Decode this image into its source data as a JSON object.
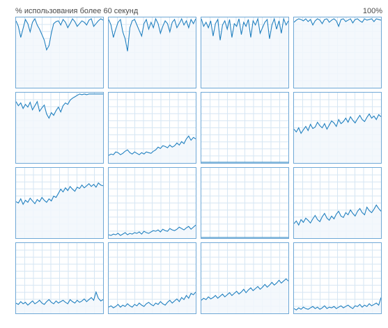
{
  "header": {
    "left_label": "% использования более 60 секунд",
    "right_label": "100%"
  },
  "colors": {
    "border": "#6fa8d6",
    "line": "#1f7fbf",
    "fill": "#f2f7fc",
    "grid": "#d6e6f3"
  },
  "chart_data": {
    "type": "line",
    "ylim": [
      0,
      100
    ],
    "grid": true,
    "series": [
      {
        "values": [
          96,
          88,
          72,
          85,
          98,
          92,
          80,
          94,
          99,
          90,
          84,
          76,
          68,
          54,
          60,
          78,
          92,
          95,
          96,
          90,
          98,
          94,
          86,
          92,
          99,
          95,
          88,
          92,
          96,
          94,
          90,
          97,
          99,
          88,
          92,
          96,
          99,
          97
        ]
      },
      {
        "values": [
          98,
          90,
          72,
          84,
          94,
          98,
          80,
          70,
          52,
          86,
          96,
          98,
          90,
          82,
          74,
          92,
          98,
          84,
          94,
          86,
          99,
          92,
          78,
          88,
          96,
          92,
          80,
          94,
          98,
          86,
          92,
          99,
          90,
          96,
          86,
          98,
          92,
          99
        ]
      },
      {
        "values": [
          99,
          88,
          94,
          86,
          96,
          74,
          92,
          98,
          68,
          90,
          96,
          84,
          98,
          72,
          92,
          88,
          99,
          76,
          94,
          88,
          98,
          72,
          96,
          90,
          99,
          78,
          86,
          94,
          98,
          70,
          90,
          99,
          84,
          96,
          78,
          99,
          90,
          96
        ]
      },
      {
        "values": [
          94,
          97,
          99,
          98,
          96,
          99,
          95,
          98,
          90,
          96,
          99,
          97,
          92,
          98,
          99,
          94,
          97,
          99,
          96,
          88,
          98,
          99,
          95,
          97,
          99,
          93,
          98,
          99,
          96,
          94,
          99,
          97,
          98,
          99,
          95,
          99,
          98,
          97
        ]
      },
      {
        "values": [
          88,
          82,
          86,
          78,
          84,
          80,
          87,
          76,
          82,
          88,
          74,
          79,
          83,
          70,
          64,
          72,
          68,
          75,
          80,
          73,
          82,
          86,
          84,
          90,
          93,
          95,
          97,
          99,
          98,
          99,
          98,
          99,
          99,
          99,
          99,
          99,
          99,
          99
        ]
      },
      {
        "values": [
          10,
          12,
          11,
          15,
          14,
          11,
          13,
          16,
          18,
          14,
          12,
          15,
          13,
          11,
          14,
          12,
          15,
          14,
          13,
          16,
          18,
          22,
          20,
          24,
          23,
          21,
          25,
          22,
          24,
          28,
          25,
          30,
          27,
          34,
          38,
          32,
          36,
          34
        ]
      },
      {
        "values": [
          0,
          0,
          0,
          0,
          0,
          0,
          0,
          0,
          0,
          0,
          0,
          0,
          0,
          0,
          0,
          0,
          0,
          0,
          0,
          0,
          0,
          0,
          0,
          0,
          0,
          0,
          0,
          0,
          0,
          0,
          0,
          0,
          0,
          0,
          0,
          0,
          0,
          0
        ]
      },
      {
        "values": [
          48,
          44,
          50,
          42,
          47,
          52,
          46,
          55,
          49,
          51,
          58,
          53,
          50,
          56,
          48,
          54,
          60,
          57,
          52,
          62,
          56,
          59,
          64,
          58,
          66,
          61,
          57,
          63,
          68,
          62,
          59,
          65,
          70,
          64,
          67,
          62,
          69,
          66
        ]
      },
      {
        "values": [
          52,
          50,
          56,
          48,
          54,
          51,
          57,
          53,
          49,
          55,
          52,
          58,
          54,
          51,
          56,
          53,
          60,
          58,
          64,
          70,
          66,
          72,
          68,
          74,
          70,
          67,
          73,
          71,
          76,
          72,
          75,
          78,
          74,
          77,
          73,
          79,
          76,
          75
        ]
      },
      {
        "values": [
          4,
          3,
          5,
          4,
          6,
          3,
          5,
          7,
          4,
          6,
          5,
          7,
          6,
          8,
          5,
          9,
          7,
          6,
          8,
          10,
          9,
          11,
          8,
          12,
          10,
          9,
          13,
          11,
          10,
          12,
          15,
          13,
          11,
          14,
          16,
          12,
          15,
          18
        ]
      },
      {
        "values": [
          0,
          0,
          0,
          0,
          0,
          0,
          0,
          0,
          0,
          0,
          0,
          0,
          0,
          0,
          0,
          0,
          0,
          0,
          0,
          0,
          0,
          0,
          0,
          0,
          0,
          0,
          0,
          0,
          0,
          0,
          0,
          0,
          0,
          0,
          0,
          0,
          0,
          0
        ]
      },
      {
        "values": [
          20,
          24,
          18,
          26,
          22,
          28,
          25,
          21,
          27,
          32,
          26,
          23,
          30,
          35,
          28,
          25,
          31,
          27,
          34,
          38,
          31,
          29,
          36,
          33,
          40,
          35,
          31,
          38,
          42,
          36,
          33,
          44,
          39,
          36,
          41,
          47,
          42,
          38
        ]
      },
      {
        "values": [
          14,
          12,
          16,
          13,
          15,
          11,
          14,
          17,
          13,
          15,
          18,
          14,
          12,
          16,
          19,
          15,
          13,
          17,
          14,
          16,
          18,
          15,
          13,
          19,
          16,
          14,
          18,
          15,
          17,
          20,
          16,
          19,
          22,
          18,
          30,
          21,
          17,
          19
        ]
      },
      {
        "values": [
          8,
          10,
          7,
          9,
          12,
          8,
          11,
          9,
          13,
          10,
          8,
          12,
          10,
          14,
          11,
          9,
          13,
          15,
          12,
          10,
          14,
          12,
          16,
          13,
          11,
          15,
          18,
          14,
          17,
          20,
          16,
          22,
          19,
          25,
          21,
          28,
          26,
          30
        ]
      },
      {
        "values": [
          18,
          21,
          19,
          23,
          20,
          22,
          25,
          21,
          24,
          27,
          23,
          26,
          29,
          25,
          28,
          31,
          27,
          30,
          34,
          29,
          33,
          36,
          32,
          35,
          38,
          34,
          37,
          41,
          37,
          40,
          44,
          40,
          43,
          47,
          43,
          46,
          49,
          46
        ]
      },
      {
        "values": [
          6,
          4,
          7,
          5,
          8,
          6,
          5,
          7,
          9,
          6,
          8,
          5,
          7,
          10,
          6,
          8,
          7,
          9,
          6,
          8,
          10,
          7,
          9,
          11,
          8,
          6,
          10,
          9,
          12,
          8,
          11,
          9,
          13,
          10,
          12,
          14,
          11,
          22
        ]
      }
    ]
  }
}
